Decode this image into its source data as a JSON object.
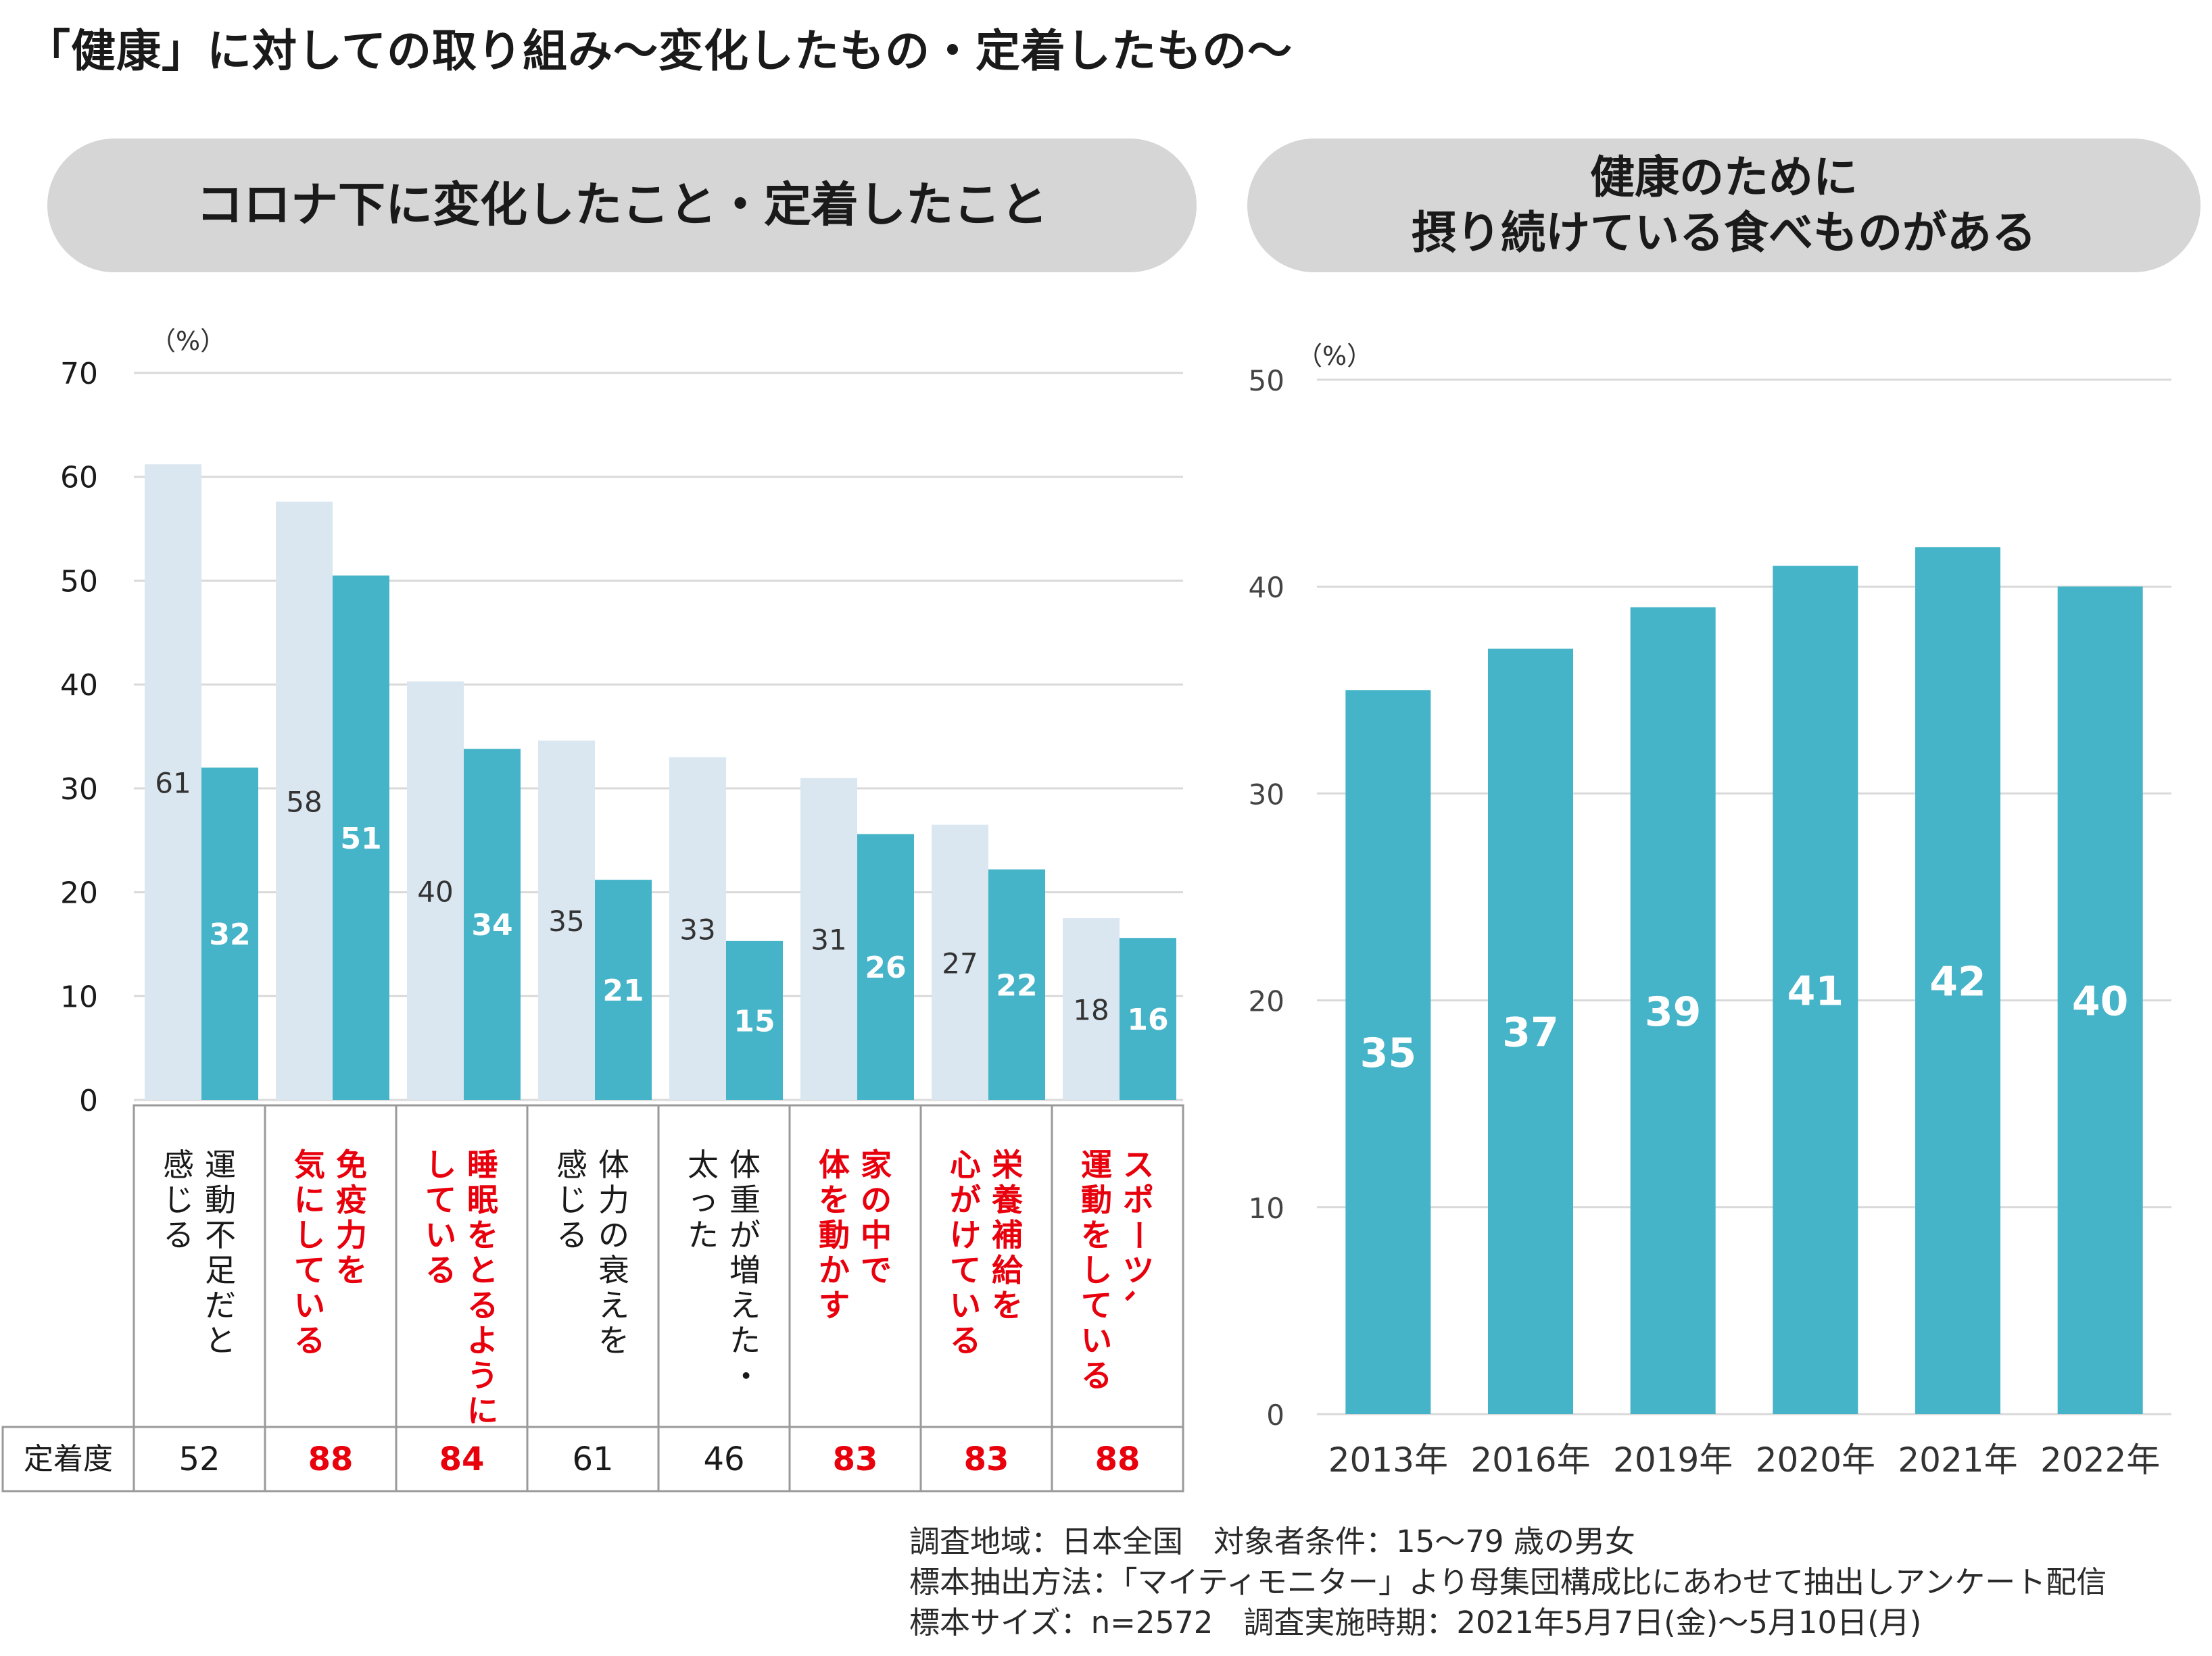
{
  "title": "「健康」に対しての取り組み～変化したもの・定着したもの～",
  "colors": {
    "light_bar": "#dae6f0",
    "teal_bar": "#45b3c8",
    "highlight_text": "#e8000d",
    "pill": "#d6d6d6",
    "grid": "#d9d9d9"
  },
  "left_panel": {
    "header": "コロナ下に変化したこと・定着したこと"
  },
  "right_panel": {
    "header_line1": "健康のために",
    "header_line2": "摂り続けている食べものがある"
  },
  "chart_data": [
    {
      "type": "bar",
      "unit_label": "（%）",
      "ylim": [
        0,
        70
      ],
      "yticks": [
        0,
        10,
        20,
        30,
        40,
        50,
        60,
        70
      ],
      "grid": true,
      "categories": [
        {
          "lines": [
            "運動不足だと",
            "感じる"
          ],
          "highlight": false
        },
        {
          "lines": [
            "免疫力を",
            "気にしている"
          ],
          "highlight": true
        },
        {
          "lines": [
            "睡眠をとるように",
            "している"
          ],
          "highlight": true
        },
        {
          "lines": [
            "体力の衰えを",
            "感じる"
          ],
          "highlight": false
        },
        {
          "lines": [
            "体重が増えた・",
            "太った"
          ],
          "highlight": false
        },
        {
          "lines": [
            "家の中で",
            "体を動かす"
          ],
          "highlight": true
        },
        {
          "lines": [
            "栄養補給を",
            "心がけている"
          ],
          "highlight": true
        },
        {
          "lines": [
            "スポーツ、",
            "運動をしている"
          ],
          "highlight": true
        }
      ],
      "series": [
        {
          "values": [
            61,
            58,
            40,
            35,
            33,
            31,
            27,
            18
          ]
        },
        {
          "values": [
            32,
            51,
            34,
            21,
            15,
            26,
            22,
            16
          ]
        }
      ],
      "bar_heights": [
        [
          61.2,
          57.6,
          40.3,
          34.6,
          33.0,
          31.0,
          26.5,
          17.5
        ],
        [
          32.0,
          50.5,
          33.8,
          21.2,
          15.3,
          25.6,
          22.2,
          15.6
        ]
      ],
      "row_header": "定着度",
      "row_values": [
        52,
        88,
        84,
        61,
        46,
        83,
        83,
        88
      ]
    },
    {
      "type": "bar",
      "unit_label": "（%）",
      "ylim": [
        0,
        50
      ],
      "yticks": [
        0,
        10,
        20,
        30,
        40,
        50
      ],
      "grid": true,
      "categories": [
        "2013年",
        "2016年",
        "2019年",
        "2020年",
        "2021年",
        "2022年"
      ],
      "values": [
        35,
        37,
        39,
        41,
        42,
        40
      ],
      "bar_heights": [
        35.0,
        37.0,
        39.0,
        41.0,
        41.9,
        40.0
      ]
    }
  ],
  "footnotes": [
    "調査地域：日本全国　対象者条件：15～79 歳の男女",
    "標本抽出方法：「マイティモニター」より母集団構成比にあわせて抽出しアンケート配信",
    "標本サイズ：n=2572　調査実施時期：2021年5月7日(金)～5月10日(月)"
  ]
}
